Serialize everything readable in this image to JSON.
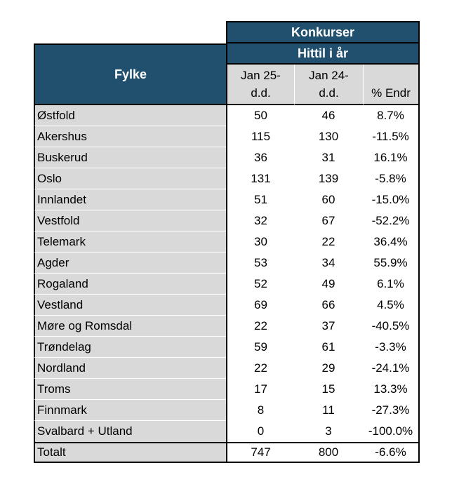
{
  "title": {
    "konkurser": "Konkurser",
    "hittil": "Hittil i år",
    "fylke": "Fylke"
  },
  "column_headers": {
    "col1_line1": "Jan 25-",
    "col1_line2": "d.d.",
    "col2_line1": "Jan 24-",
    "col2_line2": "d.d.",
    "col3": "% Endr"
  },
  "chart_data": {
    "type": "table",
    "title": "Konkurser",
    "subtitle": "Hittil i år",
    "columns": [
      "Fylke",
      "Jan 25-d.d.",
      "Jan 24-d.d.",
      "% Endr"
    ],
    "rows": [
      [
        "Østfold",
        50,
        46,
        "8.7%"
      ],
      [
        "Akershus",
        115,
        130,
        "-11.5%"
      ],
      [
        "Buskerud",
        36,
        31,
        "16.1%"
      ],
      [
        "Oslo",
        131,
        139,
        "-5.8%"
      ],
      [
        "Innlandet",
        51,
        60,
        "-15.0%"
      ],
      [
        "Vestfold",
        32,
        67,
        "-52.2%"
      ],
      [
        "Telemark",
        30,
        22,
        "36.4%"
      ],
      [
        "Agder",
        53,
        34,
        "55.9%"
      ],
      [
        "Rogaland",
        52,
        49,
        "6.1%"
      ],
      [
        "Vestland",
        69,
        66,
        "4.5%"
      ],
      [
        "Møre og Romsdal",
        22,
        37,
        "-40.5%"
      ],
      [
        "Trøndelag",
        59,
        61,
        "-3.3%"
      ],
      [
        "Nordland",
        22,
        29,
        "-24.1%"
      ],
      [
        "Troms",
        17,
        15,
        "13.3%"
      ],
      [
        "Finnmark",
        8,
        11,
        "-27.3%"
      ],
      [
        "Svalbard + Utland",
        0,
        3,
        "-100.0%"
      ]
    ],
    "total_row": [
      "Totalt",
      747,
      800,
      "-6.6%"
    ]
  },
  "colors": {
    "header_blue": "#21506F",
    "cell_gray": "#D9D9D9",
    "border_black": "#000000",
    "header_text": "#FFFFFF"
  }
}
